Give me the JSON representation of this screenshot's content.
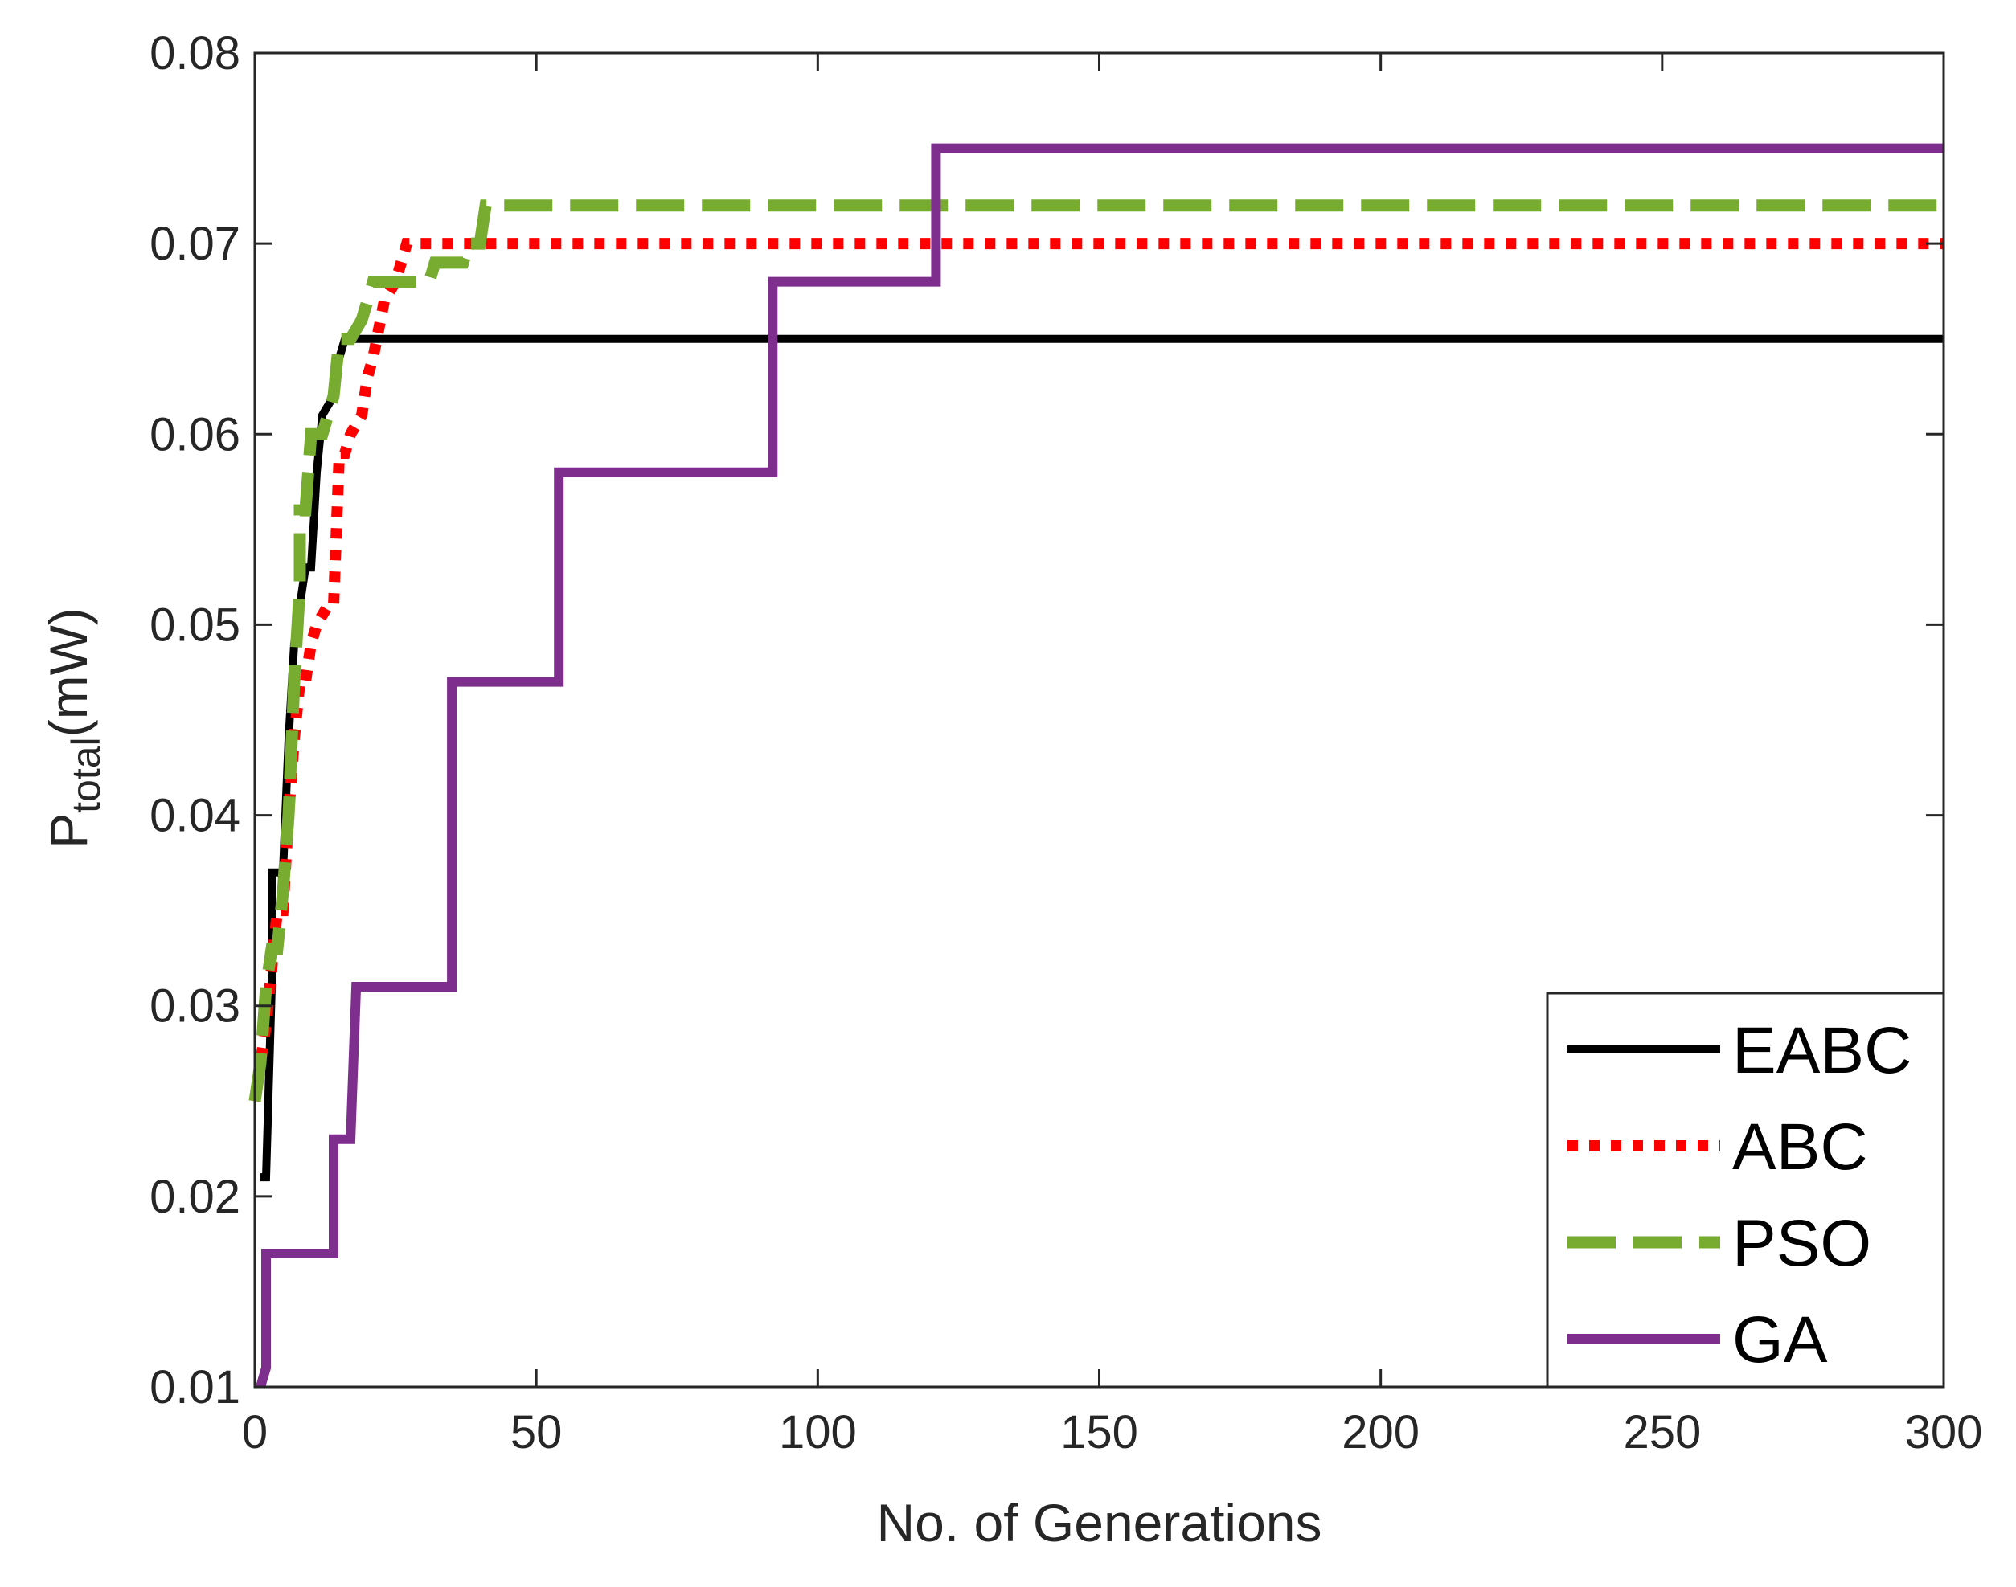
{
  "chart_data": {
    "type": "line",
    "title": "",
    "xlabel": "No. of Generations",
    "ylabel": {
      "main": "P",
      "subscript": "total",
      "suffix": "(mW)"
    },
    "xlim": [
      0,
      300
    ],
    "ylim": [
      0.01,
      0.08
    ],
    "xticks": [
      0,
      50,
      100,
      150,
      200,
      250,
      300
    ],
    "xtick_labels": [
      "0",
      "50",
      "100",
      "150",
      "200",
      "250",
      "300"
    ],
    "yticks": [
      0.01,
      0.02,
      0.03,
      0.04,
      0.05,
      0.06,
      0.07,
      0.08
    ],
    "ytick_labels": [
      "0.01",
      "0.02",
      "0.03",
      "0.04",
      "0.05",
      "0.06",
      "0.07",
      "0.08"
    ],
    "grid": false,
    "legend_position": "bottom-right",
    "series": [
      {
        "name": "EABC",
        "color": "#000000",
        "style": "solid",
        "points": [
          [
            1,
            0.021
          ],
          [
            2,
            0.021
          ],
          [
            3,
            0.031
          ],
          [
            3,
            0.037
          ],
          [
            5,
            0.037
          ],
          [
            6,
            0.044
          ],
          [
            7,
            0.049
          ],
          [
            8,
            0.051
          ],
          [
            9,
            0.053
          ],
          [
            10,
            0.053
          ],
          [
            11,
            0.058
          ],
          [
            12,
            0.061
          ],
          [
            14,
            0.062
          ],
          [
            15,
            0.064
          ],
          [
            16,
            0.065
          ],
          [
            300,
            0.065
          ]
        ]
      },
      {
        "name": "ABC",
        "color": "#ff0000",
        "style": "dotted",
        "points": [
          [
            0,
            0.025
          ],
          [
            2,
            0.029
          ],
          [
            3,
            0.032
          ],
          [
            4,
            0.035
          ],
          [
            5,
            0.035
          ],
          [
            6,
            0.04
          ],
          [
            7,
            0.044
          ],
          [
            8,
            0.047
          ],
          [
            9,
            0.047
          ],
          [
            10,
            0.049
          ],
          [
            11,
            0.05
          ],
          [
            13,
            0.051
          ],
          [
            14,
            0.051
          ],
          [
            15,
            0.059
          ],
          [
            16,
            0.059
          ],
          [
            17,
            0.06
          ],
          [
            19,
            0.061
          ],
          [
            20,
            0.063
          ],
          [
            21,
            0.064
          ],
          [
            23,
            0.067
          ],
          [
            25,
            0.068
          ],
          [
            26,
            0.069
          ],
          [
            27,
            0.07
          ],
          [
            300,
            0.07
          ]
        ]
      },
      {
        "name": "PSO",
        "color": "#77ac30",
        "style": "dashed",
        "points": [
          [
            0,
            0.025
          ],
          [
            1,
            0.027
          ],
          [
            2,
            0.031
          ],
          [
            3,
            0.033
          ],
          [
            4,
            0.033
          ],
          [
            5,
            0.036
          ],
          [
            6,
            0.04
          ],
          [
            7,
            0.047
          ],
          [
            8,
            0.052
          ],
          [
            8,
            0.056
          ],
          [
            9,
            0.056
          ],
          [
            10,
            0.06
          ],
          [
            12,
            0.06
          ],
          [
            13,
            0.061
          ],
          [
            14,
            0.062
          ],
          [
            15,
            0.065
          ],
          [
            17,
            0.065
          ],
          [
            19,
            0.066
          ],
          [
            20,
            0.067
          ],
          [
            21,
            0.068
          ],
          [
            31,
            0.068
          ],
          [
            32,
            0.069
          ],
          [
            37,
            0.069
          ],
          [
            38,
            0.07
          ],
          [
            40,
            0.07
          ],
          [
            41,
            0.072
          ],
          [
            300,
            0.072
          ]
        ]
      },
      {
        "name": "GA",
        "color": "#7e2f8e",
        "style": "solid",
        "points": [
          [
            1,
            0.01
          ],
          [
            2,
            0.011
          ],
          [
            2,
            0.017
          ],
          [
            14,
            0.017
          ],
          [
            14,
            0.023
          ],
          [
            17,
            0.023
          ],
          [
            18,
            0.031
          ],
          [
            35,
            0.031
          ],
          [
            35,
            0.047
          ],
          [
            54,
            0.047
          ],
          [
            54,
            0.058
          ],
          [
            92,
            0.058
          ],
          [
            92,
            0.068
          ],
          [
            121,
            0.068
          ],
          [
            121,
            0.075
          ],
          [
            300,
            0.075
          ]
        ]
      }
    ]
  }
}
